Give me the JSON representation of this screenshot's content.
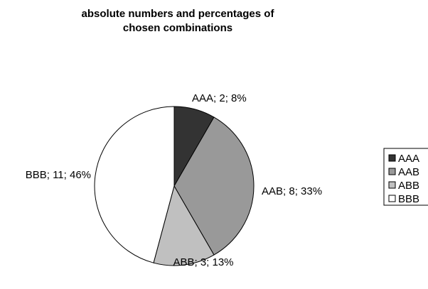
{
  "chart_data": {
    "type": "pie",
    "title": "absolute numbers and percentages of chosen combinations",
    "categories": [
      "AAA",
      "AAB",
      "ABB",
      "BBB"
    ],
    "values": [
      2,
      8,
      3,
      11
    ],
    "percentages": [
      "8%",
      "33%",
      "13%",
      "46%"
    ],
    "data_labels": [
      "AAA; 2; 8%",
      "AAB; 8; 33%",
      "ABB; 3; 13%",
      "BBB; 11; 46%"
    ],
    "colors": [
      "#333333",
      "#999999",
      "#c0c0c0",
      "#ffffff"
    ],
    "legend": {
      "position": "right",
      "entries": [
        "AAA",
        "AAB",
        "ABB",
        "BBB"
      ]
    }
  }
}
